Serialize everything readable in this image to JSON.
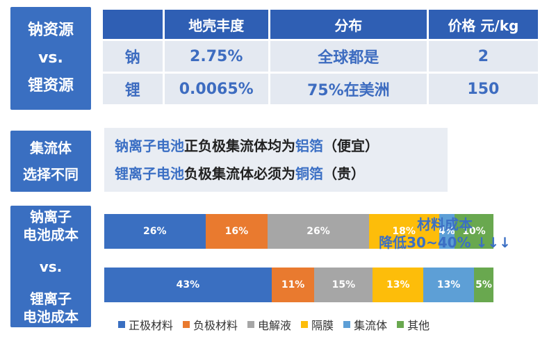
{
  "sides": {
    "top": [
      "钠资源",
      "vs.",
      "锂资源"
    ],
    "mid": [
      "集流体",
      "选择不同"
    ],
    "bottom": [
      "钠离子",
      "电池成本",
      "vs.",
      "锂离子",
      "电池成本"
    ]
  },
  "table": {
    "headers": [
      "",
      "地壳丰度",
      "分布",
      "价格 元/kg"
    ],
    "rows": [
      [
        "钠",
        "2.75%",
        "全球都是",
        "2"
      ],
      [
        "锂",
        "0.0065%",
        "75%在美洲",
        "150"
      ]
    ]
  },
  "collector": {
    "line1": {
      "a": "钠离子电池",
      "b": "正负极集流体均为",
      "c": "铝箔",
      "d": "（便宜）"
    },
    "line2": {
      "a": "锂离子电池",
      "b": "负极集流体必须为",
      "c": "铜箔",
      "d": "（贵）"
    }
  },
  "note": {
    "line1": "材料成本",
    "line2": "降低30~40% ↓↓↓"
  },
  "chart_data": {
    "type": "bar",
    "stacked": true,
    "orientation": "horizontal",
    "categories": [
      "钠离子电池成本",
      "锂离子电池成本"
    ],
    "series": [
      {
        "name": "正极材料",
        "color": "#3a6fc1",
        "values": [
          26,
          43
        ]
      },
      {
        "name": "负极材料",
        "color": "#e97a2f",
        "values": [
          16,
          11
        ]
      },
      {
        "name": "电解液",
        "color": "#a6a6a6",
        "values": [
          26,
          15
        ]
      },
      {
        "name": "隔膜",
        "color": "#fdbd0a",
        "values": [
          18,
          13
        ]
      },
      {
        "name": "集流体",
        "color": "#5d9fd6",
        "values": [
          4,
          13
        ]
      },
      {
        "name": "其他",
        "color": "#69a84f",
        "values": [
          10,
          5
        ]
      }
    ],
    "labels": [
      [
        "26%",
        "16%",
        "26%",
        "18%",
        "4%",
        "10%"
      ],
      [
        "43%",
        "11%",
        "15%",
        "13%",
        "13%",
        "5%"
      ]
    ]
  }
}
